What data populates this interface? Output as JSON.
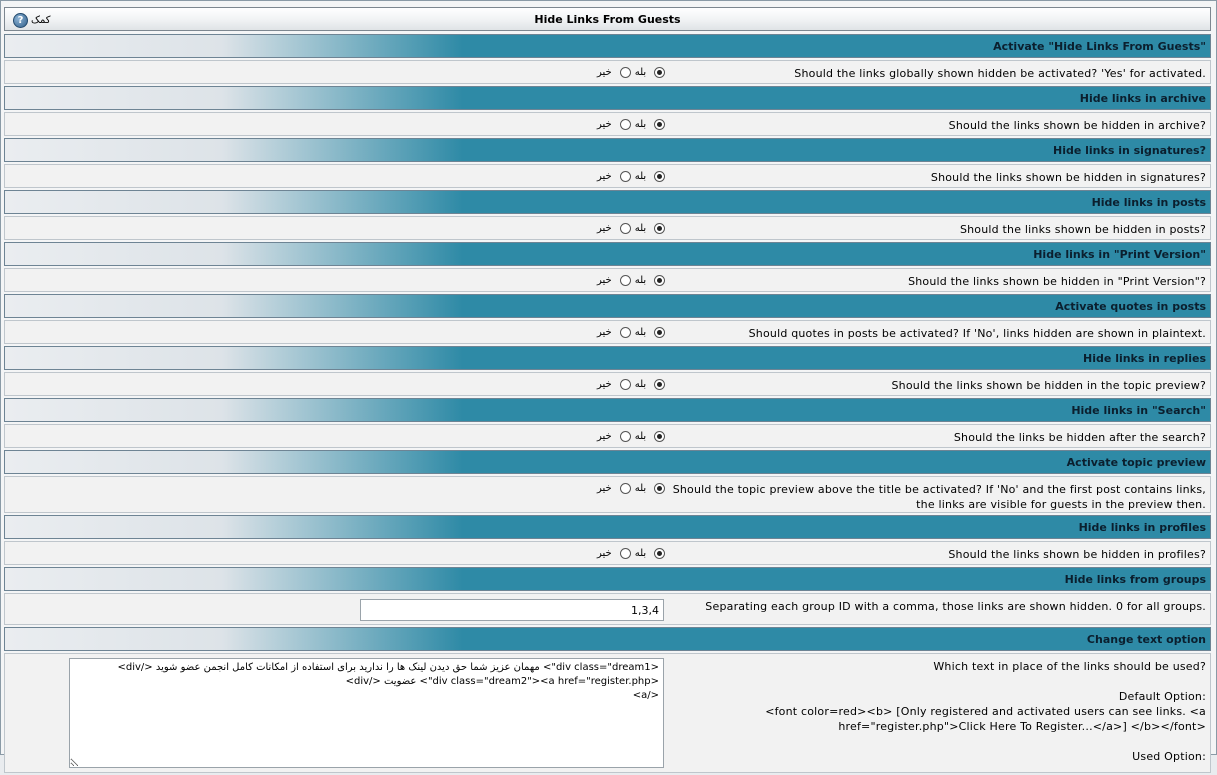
{
  "header": {
    "title": "Hide Links From Guests",
    "help_label": "کمک",
    "help_icon": "question-icon"
  },
  "radio_labels": {
    "yes": "بله",
    "no": "خیر"
  },
  "settings": [
    {
      "title": "Activate \"Hide Links From Guests\"",
      "desc": "Should the links globally shown hidden be activated? 'Yes' for activated.",
      "value": "yes"
    },
    {
      "title": "Hide links in archive",
      "desc": "Should the links shown be hidden in archive?",
      "value": "yes"
    },
    {
      "title": "Hide links in signatures?",
      "desc": "Should the links shown be hidden in signatures?",
      "value": "yes"
    },
    {
      "title": "Hide links in posts",
      "desc": "Should the links shown be hidden in posts?",
      "value": "yes"
    },
    {
      "title": "Hide links in \"Print Version\"",
      "desc": "Should the links shown be hidden in \"Print Version\"?",
      "value": "yes"
    },
    {
      "title": "Activate quotes in posts",
      "desc": "Should quotes in posts be activated? If 'No', links hidden are shown in plaintext.",
      "value": "yes"
    },
    {
      "title": "Hide links in replies",
      "desc": "Should the links shown be hidden in the topic preview?",
      "value": "yes"
    },
    {
      "title": "Hide links in \"Search\"",
      "desc": "Should the links be hidden after the search?",
      "value": "yes"
    },
    {
      "title": "Activate topic preview",
      "desc": "Should the topic preview above the title be activated? If 'No' and the first post contains links, the links are visible for guests in the preview then.",
      "value": "yes"
    },
    {
      "title": "Hide links in profiles",
      "desc": "Should the links shown be hidden in profiles?",
      "value": "yes"
    }
  ],
  "groups": {
    "title": "Hide links from groups",
    "desc": "Separating each group ID with a comma, those links are shown hidden. 0 for all groups.",
    "value": "1,3,4"
  },
  "change_text": {
    "title": "Change text option",
    "desc_lines": [
      "Which text in place of the links should be used?",
      "",
      "Default Option:",
      "<font color=red><b> [Only registered and activated users can see links. <a",
      "href=\"register.php\">Click Here To Register...</a>] </b></font>",
      "",
      "Used Option:"
    ],
    "value": "<div class=\"dream1\"> مهمان عزیز شما حق دیدن لینک ها را ندارید برای استفاده از امکانات کامل انجمن عضو شوید </div>\n<div class=\"dream2\"><a href=\"register.php\"> عضویت </div>\n</a>"
  }
}
